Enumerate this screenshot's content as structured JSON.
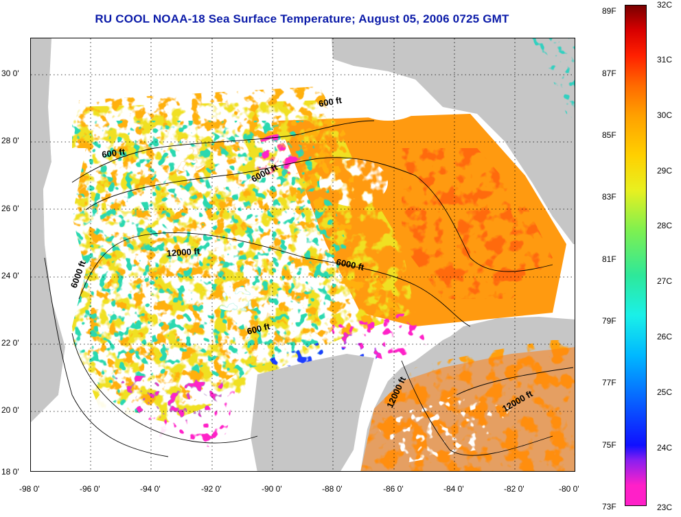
{
  "title": "RU COOL  NOAA-18  Sea Surface Temperature;  August 05, 2006 0725 GMT",
  "map": {
    "latitude_labels": [
      "30 0'",
      "28 0'",
      "26 0'",
      "24 0'",
      "22 0'",
      "20 0'",
      "18 0'"
    ],
    "longitude_labels": [
      "-98 0'",
      "-96 0'",
      "-94 0'",
      "-92 0'",
      "-90 0'",
      "-88 0'",
      "-86 0'",
      "-84 0'",
      "-82 0'",
      "-80 0'"
    ],
    "lat_range": [
      18,
      31
    ],
    "lon_range": [
      -98,
      -80
    ],
    "contour_labels": [
      {
        "text": "600 ft"
      },
      {
        "text": "600 ft"
      },
      {
        "text": "6000 ft"
      },
      {
        "text": "12000 ft"
      },
      {
        "text": "6000 ft"
      },
      {
        "text": "6000 ft"
      },
      {
        "text": "600 ft"
      },
      {
        "text": "12000 ft"
      },
      {
        "text": "12000 ft"
      }
    ],
    "colors": {
      "land": "#c6c6c6",
      "cloud": "#ffffff",
      "warm": "#ff7a10",
      "mid": "#f0e020",
      "cool": "#30d0c0",
      "cold": "#1a3cff",
      "coldest": "#ff20c8"
    }
  },
  "colorbar": {
    "fahrenheit_labels": [
      "89F",
      "87F",
      "85F",
      "83F",
      "81F",
      "79F",
      "77F",
      "75F",
      "73F"
    ],
    "celsius_labels": [
      "32C",
      "31C",
      "30C",
      "29C",
      "28C",
      "27C",
      "26C",
      "25C",
      "24C",
      "23C"
    ],
    "range_c": [
      23,
      32
    ],
    "range_f": [
      73,
      89
    ]
  }
}
